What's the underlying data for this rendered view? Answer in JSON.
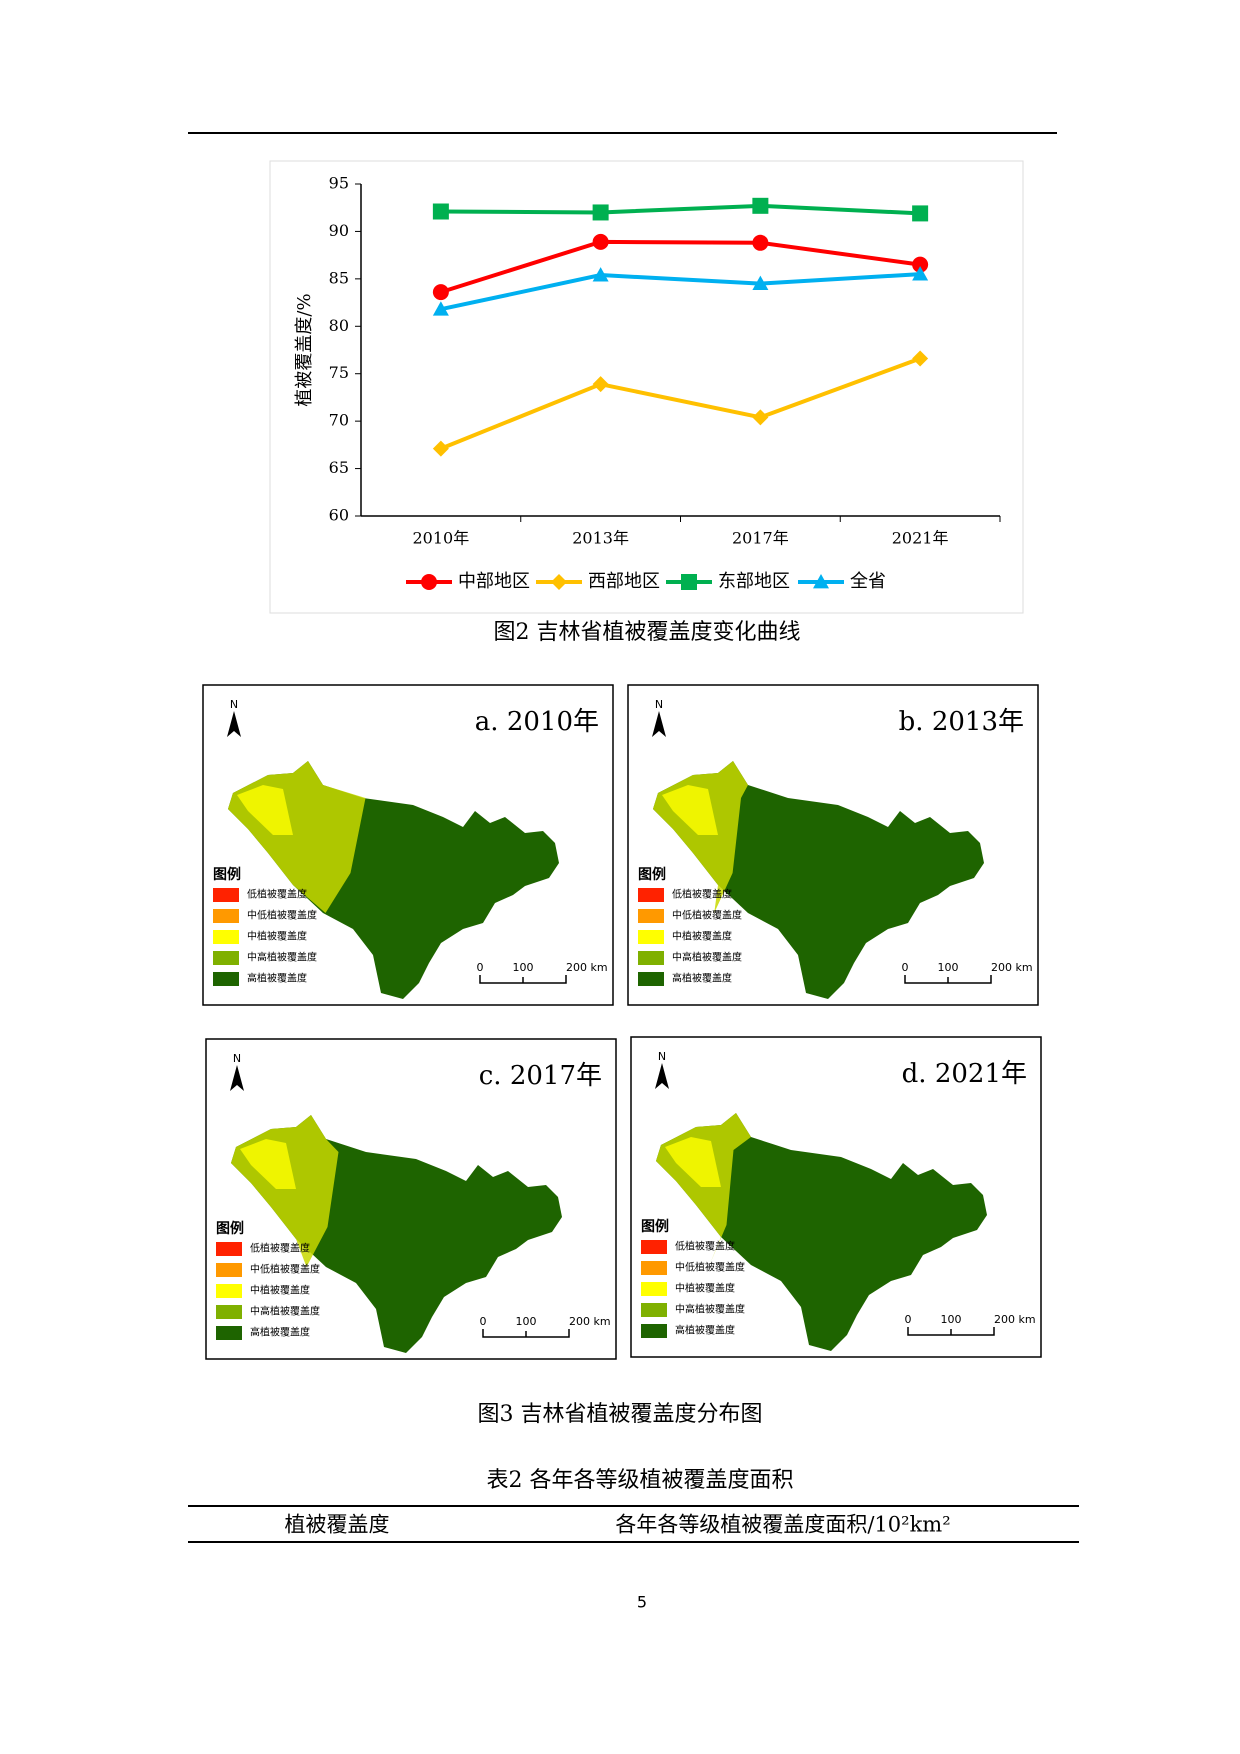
{
  "chart_data": {
    "type": "line",
    "ylabel": "植被覆盖度/%",
    "categories": [
      "2010年",
      "2013年",
      "2017年",
      "2021年"
    ],
    "series": [
      {
        "name": "中部地区",
        "color": "#ff0000",
        "marker": "circle",
        "values": [
          83.6,
          88.9,
          88.8,
          86.5
        ]
      },
      {
        "name": "西部地区",
        "color": "#ffc000",
        "marker": "diamond",
        "values": [
          67.1,
          73.9,
          70.4,
          76.6
        ]
      },
      {
        "name": "东部地区",
        "color": "#00b050",
        "marker": "square",
        "values": [
          92.1,
          92.0,
          92.7,
          91.9
        ]
      },
      {
        "name": "全省",
        "color": "#00b0f0",
        "marker": "triangle",
        "values": [
          81.8,
          85.4,
          84.5,
          85.5
        ]
      }
    ],
    "ylim": [
      60,
      95
    ],
    "yticks": [
      60,
      65,
      70,
      75,
      80,
      85,
      90,
      95
    ],
    "legend": "bottom"
  },
  "figure2": {
    "caption": "图2 吉林省植被覆盖度变化曲线"
  },
  "figure3": {
    "panels": [
      "a. 2010年",
      "b. 2013年",
      "c. 2017年",
      "d. 2021年"
    ],
    "north": "N",
    "legend_title": "图例",
    "legend": [
      {
        "label": "低植被覆盖度",
        "color": "#ff2200"
      },
      {
        "label": "中低植被覆盖度",
        "color": "#ff9900"
      },
      {
        "label": "中植被覆盖度",
        "color": "#ffff00"
      },
      {
        "label": "中高植被覆盖度",
        "color": "#7fb000"
      },
      {
        "label": "高植被覆盖度",
        "color": "#1e6400"
      }
    ],
    "scale_labels": [
      "0",
      "100",
      "200 km"
    ],
    "caption": "图3 吉林省植被覆盖度分布图"
  },
  "table": {
    "caption": "表2 各年各等级植被覆盖度面积",
    "header": [
      "植被覆盖度",
      "各年各等级植被覆盖度面积/10²km²"
    ]
  },
  "page_number": "5"
}
